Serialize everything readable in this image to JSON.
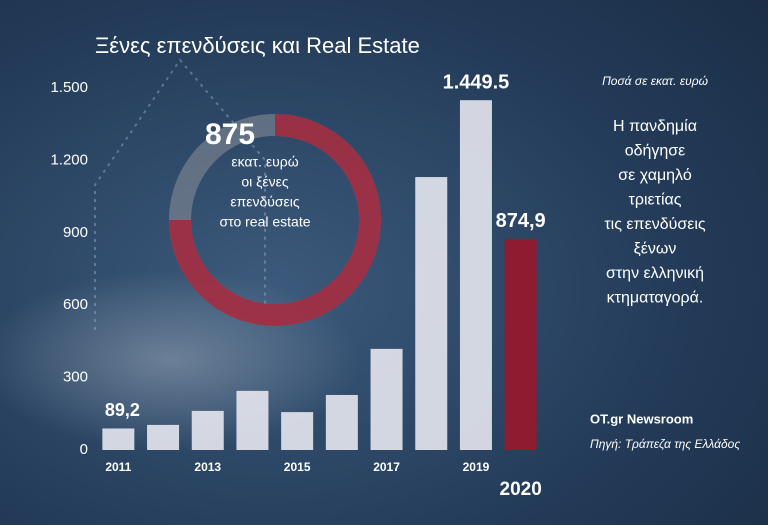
{
  "chart_data": {
    "type": "bar",
    "title": "Ξένες επενδύσεις και Real Estate",
    "unit_note": "Ποσά σε εκατ. ευρώ",
    "categories": [
      "2011",
      null,
      "2013",
      null,
      "2015",
      null,
      "2017",
      null,
      "2019",
      "2020"
    ],
    "values": [
      89.2,
      104,
      162,
      245,
      157,
      228,
      419,
      1131,
      1449.5,
      874.9
    ],
    "value_labels": [
      "89,2",
      null,
      null,
      null,
      null,
      null,
      null,
      null,
      "1.449.5",
      "874,9"
    ],
    "colors": [
      "#e6e7ee",
      "#e6e7ee",
      "#e6e7ee",
      "#e6e7ee",
      "#e6e7ee",
      "#e6e7ee",
      "#e6e7ee",
      "#e6e7ee",
      "#e6e7ee",
      "#8e1b30"
    ],
    "ylim": [
      0,
      1500
    ],
    "yticks": [
      0,
      300,
      600,
      900,
      {
        "value": 1200,
        "label": "1.200"
      },
      {
        "value": 1500,
        "label": "1.500"
      }
    ],
    "grid": false,
    "donut": {
      "number": "875",
      "lines": [
        "εκατ. ευρώ",
        "οι ξένες",
        "επενδύσεις",
        "στο real estate"
      ]
    },
    "message": [
      "Η πανδημία",
      "οδήγησε",
      "σε χαμηλό",
      "τριετίας",
      "τις επενδύσεις",
      "ξένων",
      "στην ελληνική",
      "κτηματαγορά."
    ],
    "credit": "OT.gr Newsroom",
    "source": "Πηγή: Τράπεζα της Ελλάδος"
  }
}
